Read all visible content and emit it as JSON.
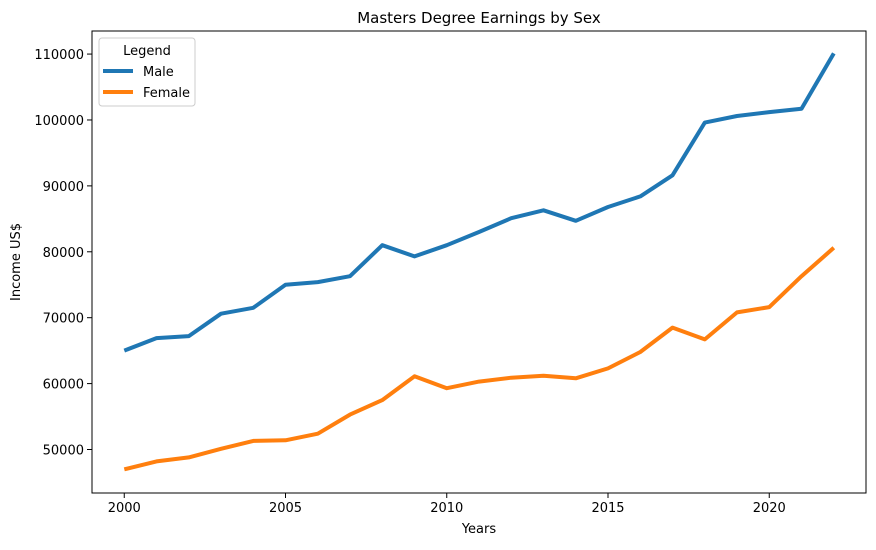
{
  "chart_data": {
    "type": "line",
    "title": "Masters Degree Earnings by Sex",
    "xlabel": "Years",
    "ylabel": "Income US$",
    "x": [
      2000,
      2001,
      2002,
      2003,
      2004,
      2005,
      2006,
      2007,
      2008,
      2009,
      2010,
      2011,
      2012,
      2013,
      2014,
      2015,
      2016,
      2017,
      2018,
      2019,
      2020,
      2021,
      2022
    ],
    "series": [
      {
        "name": "Male",
        "color": "#1f77b4",
        "values": [
          65000,
          66900,
          67200,
          70600,
          71500,
          75000,
          75400,
          76300,
          81000,
          79300,
          81000,
          83000,
          85100,
          86300,
          84700,
          86800,
          88400,
          91600,
          99600,
          100600,
          101200,
          101700,
          110100
        ]
      },
      {
        "name": "Female",
        "color": "#ff7f0e",
        "values": [
          47000,
          48200,
          48800,
          50100,
          51300,
          51400,
          52400,
          55300,
          57500,
          61100,
          59300,
          60300,
          60900,
          61200,
          60800,
          62300,
          64800,
          68500,
          66700,
          70800,
          71600,
          76300,
          80600
        ]
      }
    ],
    "xlim": [
      1999.0,
      2023.0
    ],
    "ylim": [
      43400,
      113500
    ],
    "xticks": [
      "2000",
      "2005",
      "2010",
      "2015",
      "2020"
    ],
    "yticks": [
      "50000",
      "60000",
      "70000",
      "80000",
      "90000",
      "100000",
      "110000"
    ],
    "grid": false,
    "legend": {
      "title": "Legend",
      "placement": "top-left"
    }
  }
}
